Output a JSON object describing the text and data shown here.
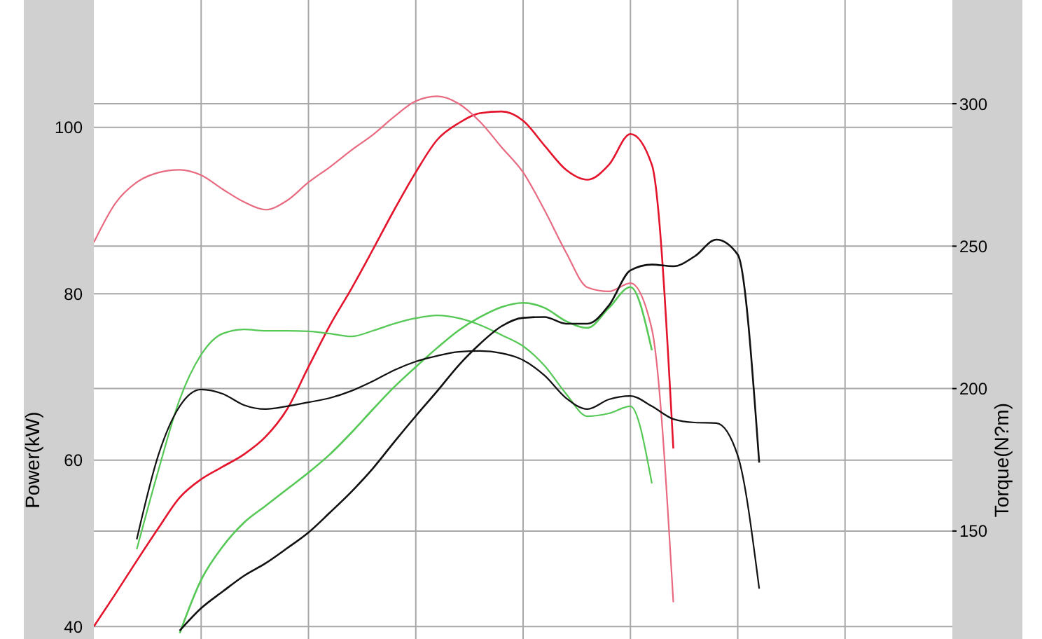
{
  "chart_data": {
    "type": "line",
    "ylabel": "Power(kW)",
    "y2label": "Torque(N?m)",
    "categories": [
      null,
      null,
      null,
      null,
      null,
      null,
      null,
      null,
      null,
      null,
      null,
      null,
      null,
      null,
      null,
      null,
      null,
      null,
      null,
      null,
      null,
      null,
      null,
      null,
      null,
      null,
      null,
      null,
      null,
      null,
      null,
      null,
      null,
      null,
      null,
      null,
      null,
      null,
      null,
      null,
      null
    ],
    "ylim": [
      38.5,
      115.3
    ],
    "yticks": [
      40,
      60,
      80,
      100
    ],
    "y2lim": [
      112.1,
      336.4
    ],
    "y2ticks": [
      150,
      200,
      250,
      300
    ],
    "grid": true,
    "legend": false,
    "marker": "none",
    "line_style": "solid",
    "series": [
      {
        "color": "#e4142c",
        "values": [
          40.0,
          43.9,
          47.9,
          51.8,
          55.5,
          57.7,
          59.2,
          60.7,
          62.8,
          66.1,
          71.2,
          76.2,
          80.6,
          85.3,
          90.1,
          94.6,
          98.5,
          100.5,
          101.7,
          101.9,
          100.8,
          97.8,
          94.9,
          93.7,
          95.5,
          99.2,
          95.5,
          61.4,
          null,
          null,
          null,
          null,
          null,
          null,
          null,
          null,
          null,
          null,
          null,
          null,
          null
        ]
      },
      {
        "color": "#e86a80",
        "axis": "y2",
        "values": [
          251.3,
          265.0,
          272.4,
          275.8,
          276.8,
          274.9,
          270.0,
          265.5,
          262.8,
          266.0,
          272.4,
          277.8,
          283.7,
          289.1,
          295.5,
          300.9,
          302.6,
          300.0,
          293.6,
          284.7,
          275.9,
          262.6,
          247.8,
          235.5,
          234.1,
          237.0,
          220.8,
          125.0,
          null,
          null,
          null,
          null,
          null,
          null,
          null,
          null,
          null,
          null,
          null,
          null,
          null
        ]
      },
      {
        "color": "#55c855",
        "values": [
          null,
          null,
          null,
          null,
          39.2,
          45.6,
          49.6,
          52.5,
          54.5,
          56.5,
          58.5,
          60.7,
          63.3,
          66.1,
          68.8,
          71.2,
          73.5,
          75.6,
          77.2,
          78.4,
          78.9,
          78.3,
          76.7,
          75.9,
          78.3,
          80.8,
          73.2,
          null,
          null,
          null,
          null,
          null,
          null,
          null,
          null,
          null,
          null,
          null,
          null,
          null,
          null
        ]
      },
      {
        "color": "#55c855",
        "axis": "y2",
        "values": [
          null,
          null,
          143.6,
          171.1,
          196.2,
          211.9,
          219.3,
          220.8,
          220.3,
          220.3,
          220.1,
          219.3,
          218.3,
          220.3,
          222.8,
          224.7,
          225.7,
          224.7,
          222.3,
          218.8,
          214.9,
          208.0,
          198.2,
          190.3,
          191.3,
          193.8,
          166.7,
          null,
          null,
          null,
          null,
          null,
          null,
          null,
          null,
          null,
          null,
          null,
          null,
          null,
          null
        ]
      },
      {
        "color": "#111111",
        "values": [
          null,
          null,
          null,
          null,
          39.5,
          42.2,
          44.2,
          46.1,
          47.6,
          49.4,
          51.3,
          53.7,
          56.2,
          59.0,
          62.2,
          65.3,
          68.3,
          71.4,
          74.0,
          76.1,
          77.1,
          77.2,
          76.4,
          76.4,
          78.6,
          82.8,
          83.5,
          83.3,
          84.5,
          86.5,
          84.7,
          59.7,
          null,
          null,
          null,
          null,
          null,
          null,
          null,
          null,
          null
        ]
      },
      {
        "color": "#111111",
        "axis": "y2",
        "values": [
          null,
          null,
          147.1,
          176.5,
          193.8,
          199.7,
          198.2,
          194.2,
          192.8,
          193.8,
          195.2,
          196.7,
          199.2,
          202.6,
          206.5,
          209.5,
          211.5,
          212.9,
          213.2,
          212.4,
          210.0,
          204.6,
          196.7,
          192.8,
          196.2,
          197.4,
          193.8,
          189.3,
          188.1,
          187.9,
          176.5,
          129.8,
          null,
          null,
          null,
          null,
          null,
          null,
          null,
          null,
          null
        ]
      }
    ]
  }
}
